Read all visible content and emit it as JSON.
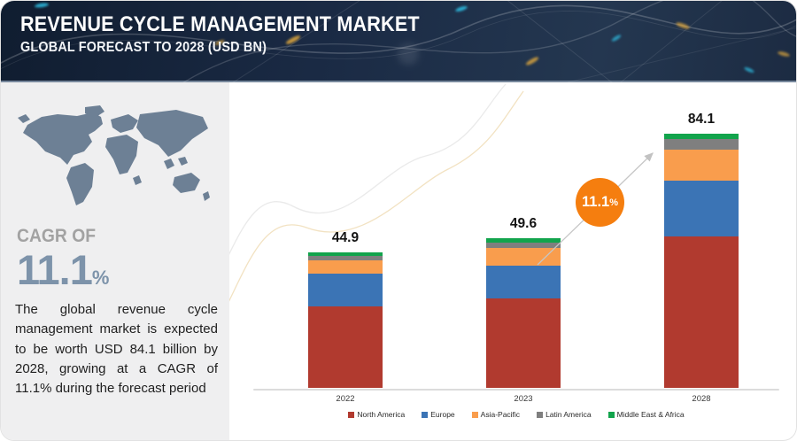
{
  "header": {
    "title": "REVENUE CYCLE MANAGEMENT MARKET",
    "subtitle": "GLOBAL FORECAST TO 2028 (USD BN)"
  },
  "sidebar": {
    "cagr_label": "CAGR OF",
    "cagr_value": "11.1",
    "cagr_unit": "%",
    "description": "The global revenue cycle management market is expected to be worth USD 84.1 billion by 2028, growing at a CAGR of 11.1% during the forecast period"
  },
  "badge": {
    "value": "11.1",
    "unit": "%",
    "color": "#f57e0f"
  },
  "colors": {
    "header_bg": "#1a2a44",
    "panel_bg": "#efeff0",
    "map": "#6d8095",
    "cagr_value": "#7d93aa",
    "axis": "#dcdcdc",
    "arrow": "#c6c6c6"
  },
  "chart_data": {
    "type": "bar",
    "stacked": true,
    "title": "REVENUE CYCLE MANAGEMENT MARKET",
    "subtitle": "GLOBAL FORECAST TO 2028 (USD BN)",
    "unit": "USD BN",
    "categories": [
      "2022",
      "2023",
      "2028"
    ],
    "totals": [
      44.9,
      49.6,
      84.1
    ],
    "series": [
      {
        "name": "North America",
        "color": "#b13a2f",
        "values": [
          27.0,
          29.5,
          50.0
        ]
      },
      {
        "name": "Europe",
        "color": "#3b74b5",
        "values": [
          10.6,
          11.0,
          18.4
        ]
      },
      {
        "name": "Asia-Pacific",
        "color": "#f99d4d",
        "values": [
          4.5,
          5.8,
          10.5
        ]
      },
      {
        "name": "Latin America",
        "color": "#7f7f7f",
        "values": [
          1.5,
          1.6,
          3.5
        ]
      },
      {
        "name": "Middle East & Africa",
        "color": "#12a44c",
        "values": [
          1.3,
          1.7,
          1.7
        ]
      }
    ],
    "xlabel": "",
    "ylabel": "",
    "grid": false,
    "legend_position": "bottom",
    "annotations": [
      {
        "text": "11.1%",
        "kind": "cagr-badge"
      },
      {
        "text": "44.9",
        "kind": "bar-total",
        "category": "2022"
      },
      {
        "text": "49.6",
        "kind": "bar-total",
        "category": "2023"
      },
      {
        "text": "84.1",
        "kind": "bar-total",
        "category": "2028"
      }
    ]
  }
}
